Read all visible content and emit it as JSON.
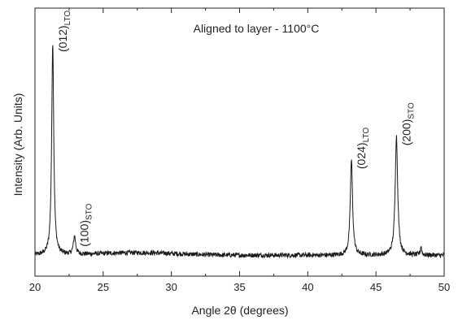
{
  "chart_data": {
    "type": "line",
    "title": "Aligned to layer - 1100°C",
    "xlabel": "Angle 2θ (degrees)",
    "ylabel": "Intensity (Arb. Units)",
    "xlim": [
      20,
      50
    ],
    "ylim": [
      0,
      100
    ],
    "x_ticks": [
      20,
      25,
      30,
      35,
      40,
      45,
      50
    ],
    "x_tick_labels": [
      "20",
      "25",
      "30",
      "35",
      "40",
      "45",
      "50"
    ],
    "y_ticks_labeled": false,
    "grid": false,
    "legend": "none",
    "line_color": "#1a1a1a",
    "baseline": 6,
    "peaks": [
      {
        "x": 21.3,
        "intensity": 100,
        "width": 0.09,
        "label_main": "(012)",
        "label_sub": "LTO"
      },
      {
        "x": 22.9,
        "intensity": 8.5,
        "width": 0.1,
        "label_main": "(100)",
        "label_sub": "STO"
      },
      {
        "x": 43.2,
        "intensity": 45,
        "width": 0.1,
        "label_main": "(024)",
        "label_sub": "LTO"
      },
      {
        "x": 46.5,
        "intensity": 56,
        "width": 0.11,
        "label_main": "(200)",
        "label_sub": "STO"
      }
    ],
    "minor_peaks": [
      {
        "x": 48.3,
        "intensity": 4,
        "width": 0.06
      }
    ]
  }
}
